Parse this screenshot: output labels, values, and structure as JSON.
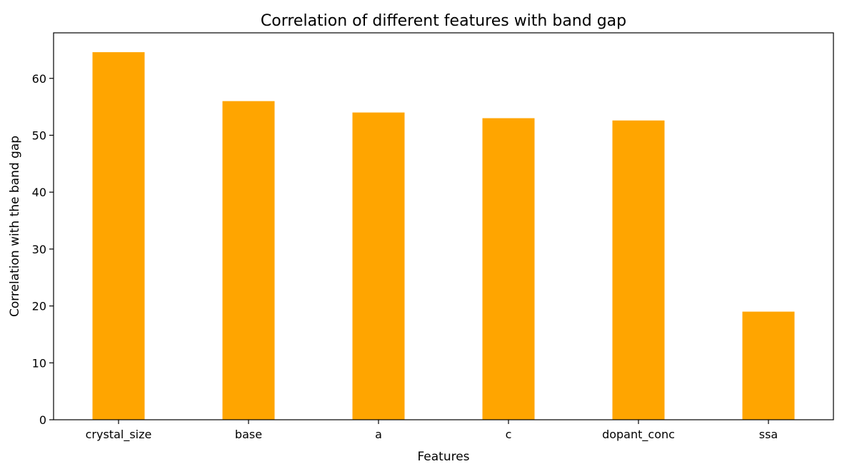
{
  "chart_data": {
    "type": "bar",
    "title": "Correlation of different features with band gap",
    "xlabel": "Features",
    "ylabel": "Correlation with the band gap",
    "categories": [
      "crystal_size",
      "base",
      "a",
      "c",
      "dopant_conc",
      "ssa"
    ],
    "values": [
      64.6,
      56.0,
      54.0,
      53.0,
      52.6,
      19.0
    ],
    "ylim": [
      0,
      68
    ],
    "yticks": [
      0,
      10,
      20,
      30,
      40,
      50,
      60
    ],
    "grid": false,
    "legend": "none",
    "bar_color": "#ffa500",
    "axis_color": "#000000"
  }
}
